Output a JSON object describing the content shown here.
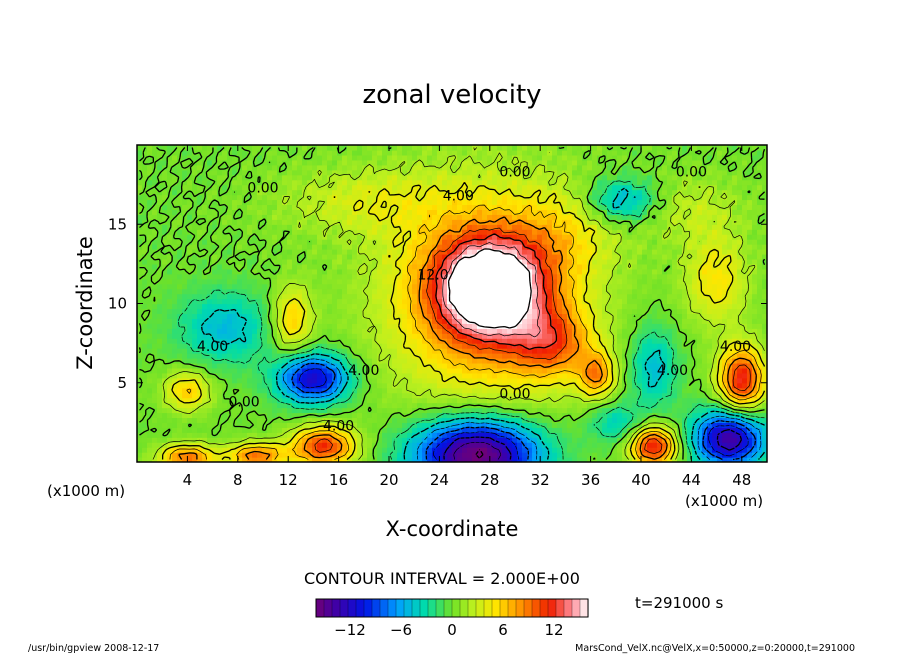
{
  "chart_data": {
    "type": "heatmap",
    "title": "zonal velocity",
    "xlabel": "X-coordinate",
    "ylabel": "Z-coordinate",
    "x_units": "(x1000 m)",
    "z_units": "(x1000 m)",
    "xlim": [
      0,
      50
    ],
    "ylim": [
      0,
      20
    ],
    "x_ticks": [
      4,
      8,
      12,
      16,
      20,
      24,
      28,
      32,
      36,
      40,
      44,
      48
    ],
    "y_ticks": [
      5,
      10,
      15
    ],
    "contour_interval_text": "CONTOUR INTERVAL = 2.000E+00",
    "time_text": "t=291000 s",
    "colorbar": {
      "min": -16,
      "max": 16,
      "tick_values": [
        -12,
        -6,
        0,
        6,
        12
      ],
      "tick_labels": [
        "−12",
        "−6",
        "0",
        "6",
        "12"
      ]
    },
    "contour_labels": [
      {
        "text": "0.00",
        "x": 10.0,
        "z": 17.0
      },
      {
        "text": "0.00",
        "x": 30.0,
        "z": 18.0
      },
      {
        "text": "0.00",
        "x": 44.0,
        "z": 18.0
      },
      {
        "text": "4.00",
        "x": 25.5,
        "z": 16.5
      },
      {
        "text": "4.00",
        "x": 6.0,
        "z": 7.0
      },
      {
        "text": "4.00",
        "x": 18.0,
        "z": 5.5
      },
      {
        "text": "4.00",
        "x": 16.0,
        "z": 2.0
      },
      {
        "text": "4.00",
        "x": 42.5,
        "z": 5.5
      },
      {
        "text": "4.00",
        "x": 47.5,
        "z": 7.0
      },
      {
        "text": "0.00",
        "x": 30.0,
        "z": 4.0
      },
      {
        "text": "0.00",
        "x": 8.5,
        "z": 3.5
      },
      {
        "text": "12.0",
        "x": 23.5,
        "z": 11.5
      }
    ],
    "features": [
      {
        "x": 28.0,
        "z": 11.0,
        "peak": 16.0,
        "sx": 3.0,
        "sz": 2.2
      },
      {
        "x": 27.5,
        "z": 10.5,
        "peak": 8.0,
        "sx": 5.5,
        "sz": 4.8
      },
      {
        "x": 33.0,
        "z": 7.5,
        "peak": 7.0,
        "sx": 2.2,
        "sz": 1.5
      },
      {
        "x": 27.0,
        "z": 0.5,
        "peak": -17.0,
        "sx": 3.5,
        "sz": 1.6
      },
      {
        "x": 14.0,
        "z": 5.3,
        "peak": -12.0,
        "sx": 2.0,
        "sz": 1.1
      },
      {
        "x": 7.0,
        "z": 8.5,
        "peak": -5.0,
        "sx": 2.6,
        "sz": 1.6
      },
      {
        "x": 12.3,
        "z": 9.0,
        "peak": 6.0,
        "sx": 1.1,
        "sz": 1.5
      },
      {
        "x": 4.0,
        "z": 4.5,
        "peak": 6.0,
        "sx": 1.3,
        "sz": 0.9
      },
      {
        "x": 14.8,
        "z": 1.0,
        "peak": 11.0,
        "sx": 1.8,
        "sz": 0.9
      },
      {
        "x": 9.5,
        "z": 0.4,
        "peak": 9.0,
        "sx": 1.6,
        "sz": 0.6
      },
      {
        "x": 4.0,
        "z": 0.3,
        "peak": 9.0,
        "sx": 1.6,
        "sz": 0.6
      },
      {
        "x": 41.0,
        "z": 1.0,
        "peak": 12.0,
        "sx": 1.3,
        "sz": 0.9
      },
      {
        "x": 47.0,
        "z": 1.5,
        "peak": -14.0,
        "sx": 2.0,
        "sz": 1.3
      },
      {
        "x": 48.0,
        "z": 5.2,
        "peak": 12.0,
        "sx": 1.3,
        "sz": 1.5
      },
      {
        "x": 41.0,
        "z": 6.0,
        "peak": -5.0,
        "sx": 1.3,
        "sz": 1.8
      },
      {
        "x": 36.5,
        "z": 5.5,
        "peak": 7.0,
        "sx": 1.0,
        "sz": 1.0
      },
      {
        "x": 38.0,
        "z": 2.5,
        "peak": -4.0,
        "sx": 1.5,
        "sz": 0.9
      },
      {
        "x": 38.5,
        "z": 16.5,
        "peak": -6.0,
        "sx": 2.0,
        "sz": 1.0
      },
      {
        "x": 46.0,
        "z": 11.5,
        "peak": 5.0,
        "sx": 1.8,
        "sz": 2.0
      },
      {
        "x": 34.0,
        "z": 14.5,
        "peak": 3.0,
        "sx": 3.0,
        "sz": 2.0
      },
      {
        "x": 18.0,
        "z": 16.5,
        "peak": 3.0,
        "sx": 5.0,
        "sz": 1.5
      },
      {
        "x": 44.0,
        "z": 16.0,
        "peak": 2.5,
        "sx": 3.0,
        "sz": 1.5
      }
    ]
  },
  "footer": {
    "left": "/usr/bin/gpview  2008-12-17",
    "right": "MarsCond_VelX.nc@VelX,x=0:50000,z=0:20000,t=291000"
  }
}
